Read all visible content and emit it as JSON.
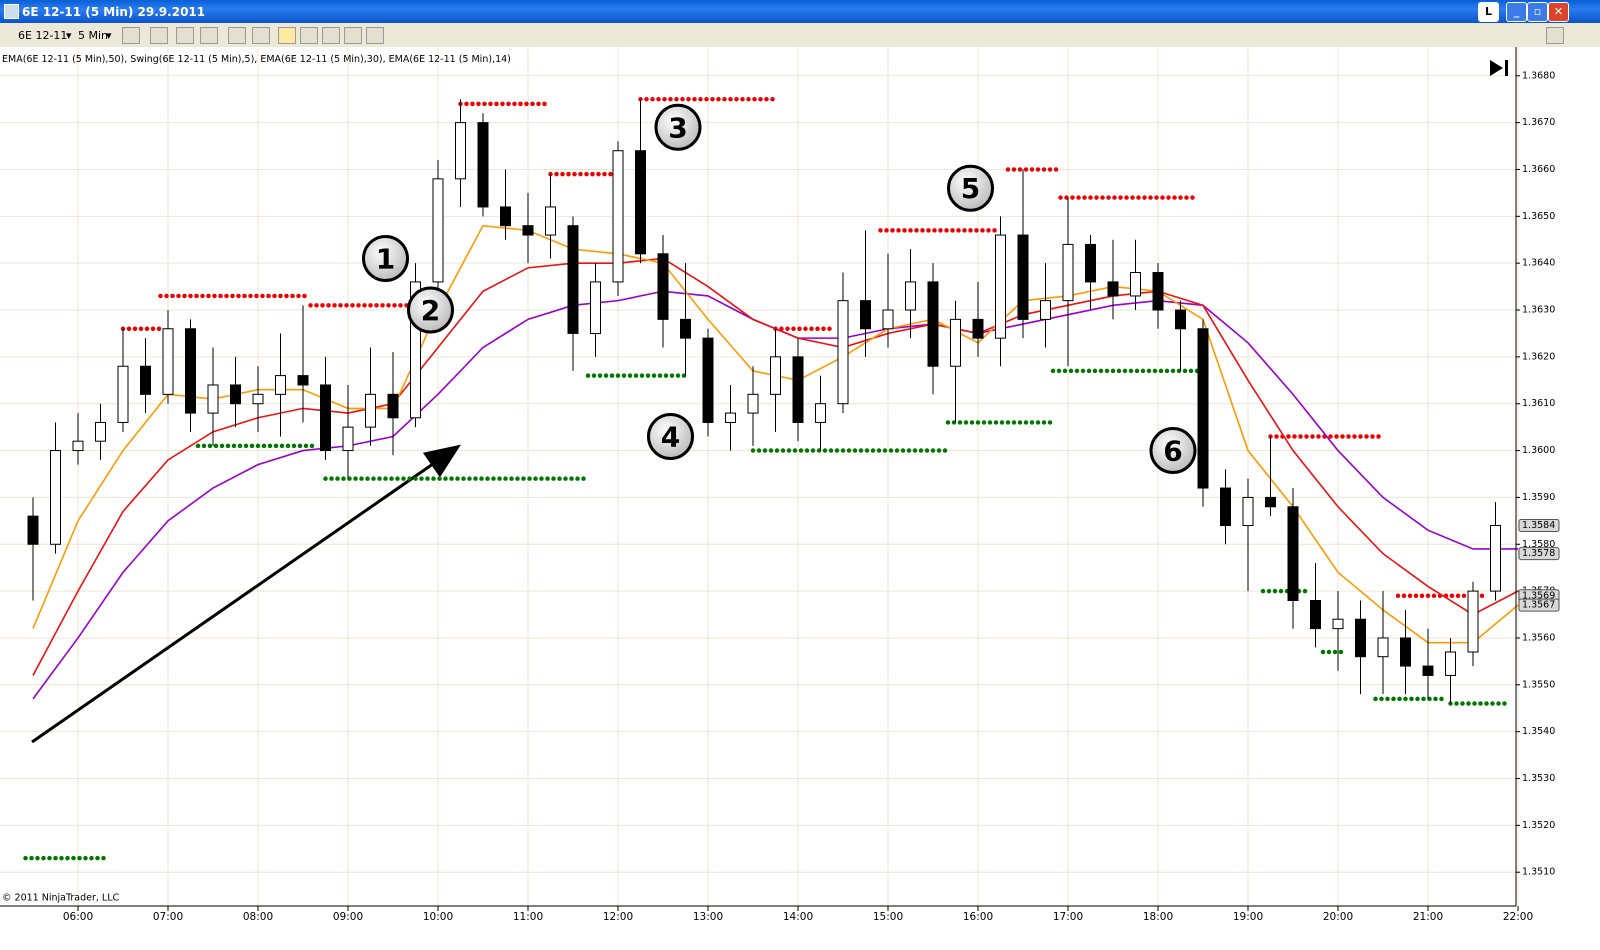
{
  "window": {
    "title": "6E 12-11 (5 Min)  29.9.2011",
    "toolbar": {
      "instrument": "6E 12-11",
      "interval": "5 Min"
    }
  },
  "chart_data": {
    "type": "candlestick",
    "copyright": "© 2011 NinjaTrader, LLC",
    "x": [
      "05:30",
      "05:45",
      "06:00",
      "06:15",
      "06:30",
      "06:45",
      "07:00",
      "07:15",
      "07:30",
      "07:45",
      "08:00",
      "08:15",
      "08:30",
      "08:45",
      "09:00",
      "09:15",
      "09:30",
      "09:45",
      "10:00",
      "10:15",
      "10:30",
      "10:45",
      "11:00",
      "11:15",
      "11:30",
      "11:45",
      "12:00",
      "12:15",
      "12:30",
      "12:45",
      "13:00",
      "13:15",
      "13:30",
      "13:45",
      "14:00",
      "14:15",
      "14:30",
      "14:45",
      "15:00",
      "15:15",
      "15:30",
      "15:45",
      "16:00",
      "16:15",
      "16:30",
      "16:45",
      "17:00",
      "17:15",
      "17:30",
      "17:45",
      "18:00",
      "18:15",
      "18:30",
      "18:45",
      "19:00",
      "19:15",
      "19:30",
      "19:45",
      "20:00",
      "20:15",
      "20:30",
      "20:45",
      "21:00",
      "21:15",
      "21:30",
      "21:45"
    ],
    "open": [
      1.3586,
      1.358,
      1.36,
      1.3602,
      1.3606,
      1.3618,
      1.3612,
      1.3626,
      1.3608,
      1.3614,
      1.361,
      1.3612,
      1.3616,
      1.3614,
      1.36,
      1.3605,
      1.3612,
      1.3607,
      1.3636,
      1.3658,
      1.367,
      1.3652,
      1.3648,
      1.3646,
      1.3648,
      1.3625,
      1.3636,
      1.3664,
      1.3642,
      1.3628,
      1.3624,
      1.3606,
      1.3608,
      1.3612,
      1.362,
      1.3606,
      1.361,
      1.3632,
      1.3626,
      1.363,
      1.3636,
      1.3618,
      1.3628,
      1.3624,
      1.3646,
      1.3628,
      1.3632,
      1.3644,
      1.3636,
      1.3633,
      1.3638,
      1.363,
      1.3626,
      1.3592,
      1.3584,
      1.359,
      1.3588,
      1.3568,
      1.3562,
      1.3564,
      1.3556,
      1.356,
      1.3554,
      1.3552,
      1.3557,
      1.357
    ],
    "high": [
      1.359,
      1.3606,
      1.3608,
      1.361,
      1.3626,
      1.3624,
      1.363,
      1.3628,
      1.3622,
      1.362,
      1.3618,
      1.3625,
      1.3631,
      1.362,
      1.3614,
      1.3622,
      1.3621,
      1.364,
      1.3662,
      1.3675,
      1.3672,
      1.366,
      1.3655,
      1.3659,
      1.365,
      1.364,
      1.3666,
      1.3675,
      1.3646,
      1.364,
      1.3626,
      1.3614,
      1.3618,
      1.3626,
      1.3624,
      1.3616,
      1.3638,
      1.3647,
      1.3642,
      1.3643,
      1.364,
      1.3632,
      1.3636,
      1.365,
      1.366,
      1.364,
      1.3654,
      1.3646,
      1.3645,
      1.3645,
      1.364,
      1.3632,
      1.3628,
      1.3596,
      1.3594,
      1.3603,
      1.3592,
      1.3576,
      1.357,
      1.3568,
      1.357,
      1.3566,
      1.3562,
      1.356,
      1.3572,
      1.3589
    ],
    "low": [
      1.3568,
      1.3578,
      1.3597,
      1.3598,
      1.3604,
      1.3608,
      1.361,
      1.3604,
      1.3601,
      1.3605,
      1.3604,
      1.3603,
      1.3606,
      1.3598,
      1.3594,
      1.3601,
      1.3599,
      1.3605,
      1.363,
      1.3652,
      1.365,
      1.3645,
      1.364,
      1.3641,
      1.3617,
      1.362,
      1.3633,
      1.364,
      1.3622,
      1.3616,
      1.3603,
      1.36,
      1.3601,
      1.3604,
      1.3602,
      1.36,
      1.3608,
      1.362,
      1.3622,
      1.3624,
      1.3612,
      1.3606,
      1.362,
      1.3618,
      1.3624,
      1.3622,
      1.3618,
      1.363,
      1.3628,
      1.363,
      1.3626,
      1.3617,
      1.3588,
      1.358,
      1.357,
      1.3586,
      1.3562,
      1.3558,
      1.3553,
      1.3548,
      1.3548,
      1.3548,
      1.3547,
      1.3546,
      1.3554,
      1.3568
    ],
    "close": [
      1.358,
      1.36,
      1.3602,
      1.3606,
      1.3618,
      1.3612,
      1.3626,
      1.3608,
      1.3614,
      1.361,
      1.3612,
      1.3616,
      1.3614,
      1.36,
      1.3605,
      1.3612,
      1.3607,
      1.3636,
      1.3658,
      1.367,
      1.3652,
      1.3648,
      1.3646,
      1.3652,
      1.3625,
      1.3636,
      1.3664,
      1.3642,
      1.3628,
      1.3624,
      1.3606,
      1.3608,
      1.3612,
      1.362,
      1.3606,
      1.361,
      1.3632,
      1.3626,
      1.363,
      1.3636,
      1.3618,
      1.3628,
      1.3624,
      1.3646,
      1.3628,
      1.3632,
      1.3644,
      1.3636,
      1.3633,
      1.3638,
      1.363,
      1.3626,
      1.3592,
      1.3584,
      1.359,
      1.3588,
      1.3568,
      1.3562,
      1.3564,
      1.3556,
      1.356,
      1.3554,
      1.3552,
      1.3557,
      1.357,
      1.3584
    ],
    "series": [
      {
        "name": "EMA(6E 12-11 (5 Min),50)",
        "color": "#9900cc",
        "x": [
          "05:30",
          "06:00",
          "06:30",
          "07:00",
          "07:30",
          "08:00",
          "08:30",
          "09:00",
          "09:30",
          "10:00",
          "10:30",
          "11:00",
          "11:30",
          "12:00",
          "12:30",
          "13:00",
          "13:30",
          "14:00",
          "14:30",
          "15:00",
          "15:30",
          "16:00",
          "16:30",
          "17:00",
          "17:30",
          "18:00",
          "18:30",
          "19:00",
          "19:30",
          "20:00",
          "20:30",
          "21:00",
          "21:30",
          "22:00"
        ],
        "values": [
          1.3547,
          1.356,
          1.3574,
          1.3585,
          1.3592,
          1.3597,
          1.36,
          1.3601,
          1.3603,
          1.3612,
          1.3622,
          1.3628,
          1.3631,
          1.3632,
          1.3634,
          1.3633,
          1.3628,
          1.3624,
          1.3624,
          1.3626,
          1.3627,
          1.3625,
          1.3627,
          1.3629,
          1.3631,
          1.3632,
          1.3631,
          1.3623,
          1.3612,
          1.36,
          1.359,
          1.3583,
          1.3579,
          1.3579
        ]
      },
      {
        "name": "EMA(6E 12-11 (5 Min),30)",
        "color": "#ee1111",
        "x": [
          "05:30",
          "06:00",
          "06:30",
          "07:00",
          "07:30",
          "08:00",
          "08:30",
          "09:00",
          "09:30",
          "10:00",
          "10:30",
          "11:00",
          "11:30",
          "12:00",
          "12:30",
          "13:00",
          "13:30",
          "14:00",
          "14:30",
          "15:00",
          "15:30",
          "16:00",
          "16:30",
          "17:00",
          "17:30",
          "18:00",
          "18:30",
          "19:00",
          "19:30",
          "20:00",
          "20:30",
          "21:00",
          "21:30",
          "22:00"
        ],
        "values": [
          1.3552,
          1.357,
          1.3587,
          1.3598,
          1.3604,
          1.3607,
          1.3609,
          1.3608,
          1.361,
          1.3622,
          1.3634,
          1.3639,
          1.364,
          1.364,
          1.3641,
          1.3635,
          1.3628,
          1.3624,
          1.3622,
          1.3625,
          1.3627,
          1.3625,
          1.3629,
          1.3631,
          1.3633,
          1.3634,
          1.3631,
          1.3615,
          1.36,
          1.3588,
          1.3578,
          1.3571,
          1.3565,
          1.357
        ]
      },
      {
        "name": "EMA(6E 12-11 (5 Min),14)",
        "color": "#ff9900",
        "x": [
          "05:30",
          "06:00",
          "06:30",
          "07:00",
          "07:30",
          "08:00",
          "08:30",
          "09:00",
          "09:30",
          "10:00",
          "10:30",
          "11:00",
          "11:30",
          "12:00",
          "12:30",
          "13:00",
          "13:30",
          "14:00",
          "14:30",
          "15:00",
          "15:30",
          "16:00",
          "16:30",
          "17:00",
          "17:30",
          "18:00",
          "18:30",
          "19:00",
          "19:30",
          "20:00",
          "20:30",
          "21:00",
          "21:30",
          "22:00"
        ],
        "values": [
          1.3562,
          1.3585,
          1.36,
          1.3612,
          1.3611,
          1.3613,
          1.3613,
          1.3609,
          1.3609,
          1.363,
          1.3648,
          1.3647,
          1.3643,
          1.3642,
          1.364,
          1.3628,
          1.3617,
          1.3615,
          1.362,
          1.3626,
          1.3628,
          1.3623,
          1.3632,
          1.3633,
          1.3635,
          1.3634,
          1.3628,
          1.36,
          1.3588,
          1.3574,
          1.3566,
          1.3559,
          1.3559,
          1.3567
        ]
      }
    ],
    "swing": {
      "name": "Swing(6E 12-11 (5 Min),5)",
      "high_color": "#ee0000",
      "low_color": "#007700",
      "highs": [
        {
          "start": "06:30",
          "end": "06:55",
          "value": 1.3626
        },
        {
          "start": "06:55",
          "end": "08:35",
          "value": 1.3633
        },
        {
          "start": "08:35",
          "end": "09:40",
          "value": 1.3631
        },
        {
          "start": "10:15",
          "end": "11:15",
          "value": 1.3674
        },
        {
          "start": "11:15",
          "end": "12:00",
          "value": 1.3659
        },
        {
          "start": "12:15",
          "end": "13:45",
          "value": 1.3675
        },
        {
          "start": "13:45",
          "end": "14:25",
          "value": 1.3626
        },
        {
          "start": "14:55",
          "end": "16:15",
          "value": 1.3647
        },
        {
          "start": "16:20",
          "end": "16:55",
          "value": 1.366
        },
        {
          "start": "16:55",
          "end": "18:25",
          "value": 1.3654
        },
        {
          "start": "19:15",
          "end": "20:30",
          "value": 1.3603
        },
        {
          "start": "20:40",
          "end": "21:40",
          "value": 1.3569
        }
      ],
      "lows": [
        {
          "start": "05:25",
          "end": "06:20",
          "value": 1.3513
        },
        {
          "start": "07:20",
          "end": "08:40",
          "value": 1.3601
        },
        {
          "start": "08:45",
          "end": "11:40",
          "value": 1.3594
        },
        {
          "start": "11:40",
          "end": "12:45",
          "value": 1.3616
        },
        {
          "start": "13:30",
          "end": "15:40",
          "value": 1.36
        },
        {
          "start": "15:40",
          "end": "16:50",
          "value": 1.3606
        },
        {
          "start": "16:50",
          "end": "18:30",
          "value": 1.3617
        },
        {
          "start": "19:10",
          "end": "19:40",
          "value": 1.357
        },
        {
          "start": "19:50",
          "end": "20:05",
          "value": 1.3557
        },
        {
          "start": "20:25",
          "end": "21:10",
          "value": 1.3547
        },
        {
          "start": "21:15",
          "end": "21:55",
          "value": 1.3546
        }
      ]
    },
    "annotations": [
      {
        "text": "1",
        "x": "09:25",
        "y": 1.3641
      },
      {
        "text": "2",
        "x": "09:55",
        "y": 1.363
      },
      {
        "text": "3",
        "x": "12:40",
        "y": 1.3669
      },
      {
        "text": "4",
        "x": "12:35",
        "y": 1.3603
      },
      {
        "text": "5",
        "x": "15:55",
        "y": 1.3656
      },
      {
        "text": "6",
        "x": "18:10",
        "y": 1.36
      }
    ],
    "price_markers": [
      {
        "value": 1.3584,
        "label": "1.3584"
      },
      {
        "value": 1.3578,
        "label": "1.3578"
      },
      {
        "value": 1.3569,
        "label": "1.3569"
      },
      {
        "value": 1.3567,
        "label": "1.3567"
      }
    ],
    "xlim": [
      "05:08",
      "22:00"
    ],
    "xticks": [
      "06:00",
      "07:00",
      "08:00",
      "09:00",
      "10:00",
      "11:00",
      "12:00",
      "13:00",
      "14:00",
      "15:00",
      "16:00",
      "17:00",
      "18:00",
      "19:00",
      "20:00",
      "21:00",
      "22:00"
    ],
    "ylim": [
      1.3503,
      1.36855
    ],
    "yticks": [
      {
        "value": 1.351,
        "label": "1.3510"
      },
      {
        "value": 1.352,
        "label": "1.3520"
      },
      {
        "value": 1.353,
        "label": "1.3530"
      },
      {
        "value": 1.354,
        "label": "1.3540"
      },
      {
        "value": 1.355,
        "label": "1.3550"
      },
      {
        "value": 1.356,
        "label": "1.3560"
      },
      {
        "value": 1.357,
        "label": "1.3570"
      },
      {
        "value": 1.358,
        "label": "1.3580"
      },
      {
        "value": 1.359,
        "label": "1.3590"
      },
      {
        "value": 1.36,
        "label": "1.3600"
      },
      {
        "value": 1.361,
        "label": "1.3610"
      },
      {
        "value": 1.362,
        "label": "1.3620"
      },
      {
        "value": 1.363,
        "label": "1.3630"
      },
      {
        "value": 1.364,
        "label": "1.3640"
      },
      {
        "value": 1.365,
        "label": "1.3650"
      },
      {
        "value": 1.366,
        "label": "1.3660"
      },
      {
        "value": 1.367,
        "label": "1.3670"
      },
      {
        "value": 1.368,
        "label": "1.3680"
      }
    ],
    "grid": true
  }
}
